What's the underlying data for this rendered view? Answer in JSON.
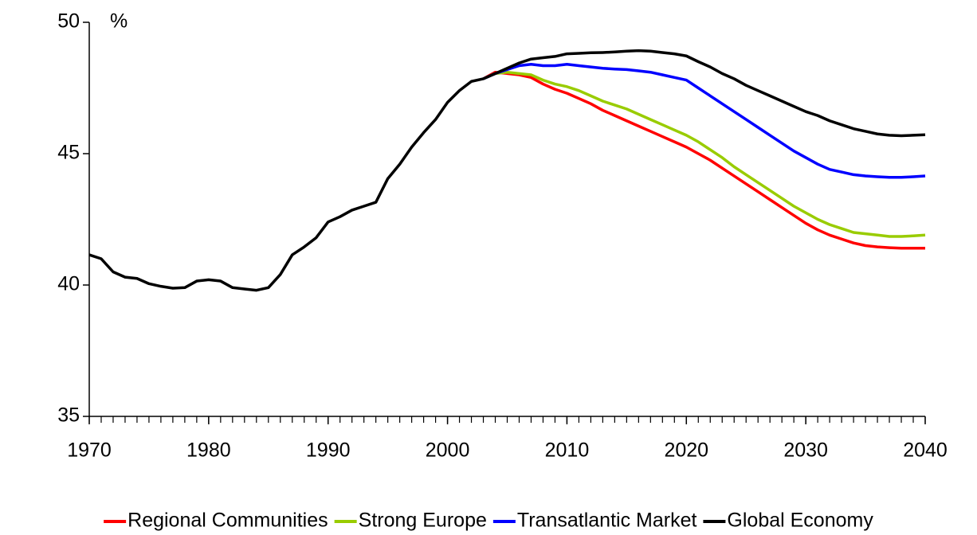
{
  "chart_data": {
    "type": "line",
    "ylabel": "%",
    "x": [
      1970,
      1971,
      1972,
      1973,
      1974,
      1975,
      1976,
      1977,
      1978,
      1979,
      1980,
      1981,
      1982,
      1983,
      1984,
      1985,
      1986,
      1987,
      1988,
      1989,
      1990,
      1991,
      1992,
      1993,
      1994,
      1995,
      1996,
      1997,
      1998,
      1999,
      2000,
      2001,
      2002,
      2003,
      2004,
      2005,
      2006,
      2007,
      2008,
      2009,
      2010,
      2011,
      2012,
      2013,
      2014,
      2015,
      2016,
      2017,
      2018,
      2019,
      2020,
      2021,
      2022,
      2023,
      2024,
      2025,
      2026,
      2027,
      2028,
      2029,
      2030,
      2031,
      2032,
      2033,
      2034,
      2035,
      2036,
      2037,
      2038,
      2039,
      2040
    ],
    "series": [
      {
        "name": "Regional Communities",
        "color": "#ff0000",
        "values": [
          null,
          null,
          null,
          null,
          null,
          null,
          null,
          null,
          null,
          null,
          null,
          null,
          null,
          null,
          null,
          null,
          null,
          null,
          null,
          null,
          null,
          null,
          null,
          null,
          null,
          null,
          null,
          null,
          null,
          null,
          null,
          null,
          null,
          47.85,
          48.1,
          48.05,
          48.0,
          47.9,
          47.65,
          47.45,
          47.3,
          47.1,
          46.9,
          46.65,
          46.45,
          46.25,
          46.05,
          45.85,
          45.65,
          45.45,
          45.25,
          45.0,
          44.75,
          44.45,
          44.15,
          43.85,
          43.55,
          43.25,
          42.95,
          42.65,
          42.35,
          42.1,
          41.9,
          41.75,
          41.6,
          41.5,
          41.45,
          41.42,
          41.4,
          41.4,
          41.4
        ]
      },
      {
        "name": "Strong Europe",
        "color": "#99cc00",
        "values": [
          null,
          null,
          null,
          null,
          null,
          null,
          null,
          null,
          null,
          null,
          null,
          null,
          null,
          null,
          null,
          null,
          null,
          null,
          null,
          null,
          null,
          null,
          null,
          null,
          null,
          null,
          null,
          null,
          null,
          null,
          null,
          null,
          null,
          47.85,
          48.05,
          48.1,
          48.05,
          48.0,
          47.8,
          47.65,
          47.55,
          47.4,
          47.2,
          47.0,
          46.85,
          46.7,
          46.5,
          46.3,
          46.1,
          45.9,
          45.7,
          45.45,
          45.15,
          44.85,
          44.5,
          44.2,
          43.9,
          43.6,
          43.3,
          43.0,
          42.75,
          42.5,
          42.3,
          42.15,
          42.0,
          41.95,
          41.9,
          41.85,
          41.85,
          41.87,
          41.9
        ]
      },
      {
        "name": "Transatlantic Market",
        "color": "#0000ff",
        "values": [
          null,
          null,
          null,
          null,
          null,
          null,
          null,
          null,
          null,
          null,
          null,
          null,
          null,
          null,
          null,
          null,
          null,
          null,
          null,
          null,
          null,
          null,
          null,
          null,
          null,
          null,
          null,
          null,
          null,
          null,
          null,
          null,
          null,
          47.85,
          48.05,
          48.2,
          48.35,
          48.4,
          48.35,
          48.35,
          48.4,
          48.35,
          48.3,
          48.25,
          48.22,
          48.2,
          48.15,
          48.1,
          48.0,
          47.9,
          47.8,
          47.5,
          47.2,
          46.9,
          46.6,
          46.3,
          46.0,
          45.7,
          45.4,
          45.1,
          44.85,
          44.6,
          44.4,
          44.3,
          44.2,
          44.15,
          44.12,
          44.1,
          44.1,
          44.12,
          44.15
        ]
      },
      {
        "name": "Global Economy",
        "color": "#000000",
        "values": [
          41.15,
          41.0,
          40.5,
          40.3,
          40.25,
          40.05,
          39.95,
          39.88,
          39.9,
          40.15,
          40.2,
          40.15,
          39.9,
          39.85,
          39.8,
          39.9,
          40.4,
          41.15,
          41.45,
          41.8,
          42.4,
          42.6,
          42.85,
          43.0,
          43.15,
          44.05,
          44.6,
          45.25,
          45.8,
          46.3,
          46.95,
          47.4,
          47.75,
          47.85,
          48.05,
          48.25,
          48.45,
          48.6,
          48.65,
          48.7,
          48.8,
          48.82,
          48.84,
          48.85,
          48.87,
          48.9,
          48.92,
          48.9,
          48.85,
          48.8,
          48.72,
          48.5,
          48.3,
          48.05,
          47.85,
          47.6,
          47.4,
          47.2,
          47.0,
          46.8,
          46.6,
          46.45,
          46.25,
          46.1,
          45.95,
          45.85,
          45.75,
          45.7,
          45.68,
          45.7,
          45.72
        ]
      }
    ],
    "xlim": [
      1970,
      2040
    ],
    "xticks": [
      1970,
      1980,
      1990,
      2000,
      2010,
      2020,
      2030,
      2040
    ],
    "ylim": [
      35,
      50
    ],
    "yticks": [
      35,
      40,
      45,
      50
    ],
    "grid": false,
    "legend": "bottom"
  }
}
